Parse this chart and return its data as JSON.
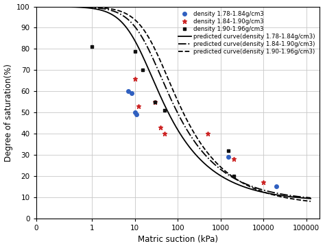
{
  "xlabel": "Matric suction (kPa)",
  "ylabel": "Degree of saturation(%)",
  "ylim": [
    0,
    100
  ],
  "yticks": [
    0,
    10,
    20,
    30,
    40,
    50,
    60,
    70,
    80,
    90,
    100
  ],
  "xtick_positions": [
    0.05,
    1,
    10,
    100,
    1000,
    10000,
    100000
  ],
  "xtick_labels": [
    "0",
    "1",
    "10",
    "100",
    "1000",
    "10000",
    "100000"
  ],
  "scatter_blue": {
    "x": [
      7,
      8.5,
      10,
      11,
      1500,
      20000
    ],
    "y": [
      60,
      59,
      50,
      49,
      29,
      15
    ],
    "color": "#3060c0",
    "marker": "o",
    "markersize": 4,
    "label": "density 1.78-1.84g/cm3"
  },
  "scatter_red": {
    "x": [
      10,
      12,
      30,
      40,
      50,
      500,
      2000,
      10000
    ],
    "y": [
      66,
      53,
      55,
      43,
      40,
      40,
      28,
      17
    ],
    "color": "#cc2222",
    "marker": "*",
    "markersize": 5,
    "label": "density 1.84-1.90g/cm3"
  },
  "scatter_black": {
    "x": [
      1,
      10,
      15,
      30,
      50,
      1500,
      2000
    ],
    "y": [
      81,
      79,
      70,
      55,
      51,
      32,
      20
    ],
    "color": "#111111",
    "marker": "s",
    "markersize": 3.5,
    "label": "density 1.90-1.96g/cm3"
  },
  "vg_curve1": {
    "alpha": 0.09,
    "n": 1.45,
    "m": 0.31,
    "Sr": 0.08,
    "color": "#000000",
    "linestyle": "-",
    "linewidth": 1.3,
    "label": "predicted curve(density 1.78-1.84g/cm3)"
  },
  "vg_curve2": {
    "alpha": 0.055,
    "n": 1.45,
    "m": 0.31,
    "Sr": 0.08,
    "color": "#000000",
    "linestyle": "-.",
    "linewidth": 1.3,
    "label": "predicted curve(density 1.84-1.90g/cm3)"
  },
  "vg_curve3": {
    "alpha": 0.038,
    "n": 1.45,
    "m": 0.31,
    "Sr": 0.06,
    "color": "#000000",
    "linestyle": "--",
    "linewidth": 1.3,
    "label": "predicted curve(density 1.90-1.96g/cm3)"
  },
  "background_color": "#ffffff",
  "grid_color": "#c8c8c8"
}
